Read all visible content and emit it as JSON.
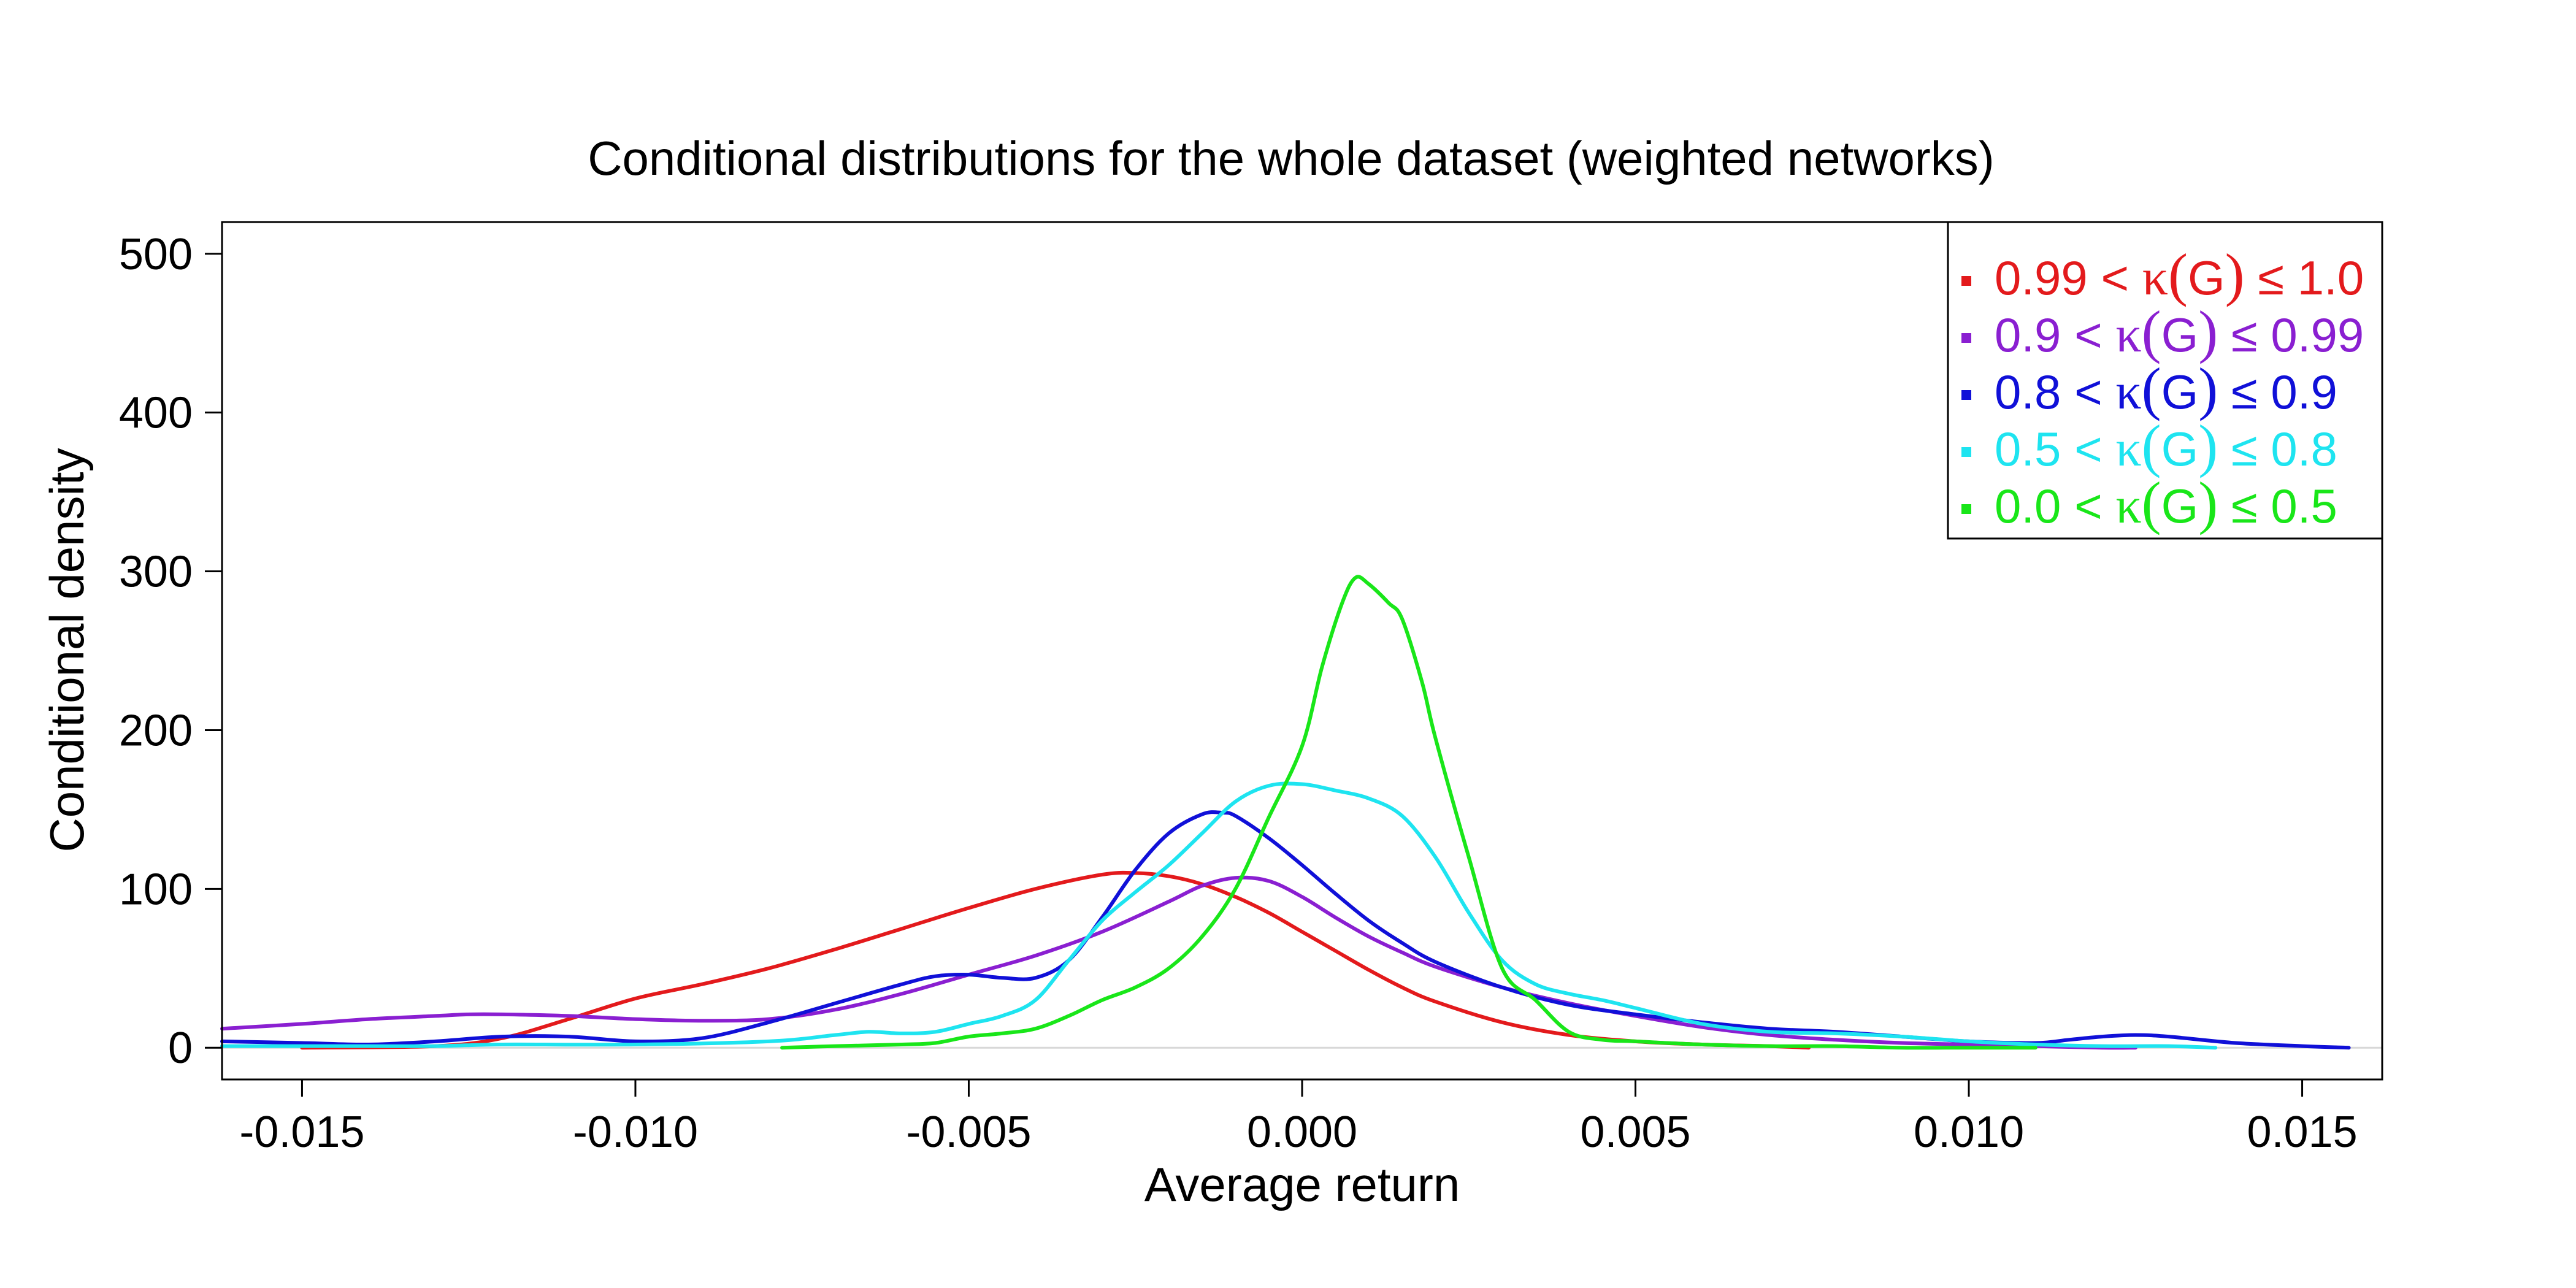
{
  "chart_data": {
    "type": "line",
    "title": "Conditional distributions for the whole dataset (weighted networks)",
    "xlabel": "Average return",
    "ylabel": "Conditional density",
    "xlim": [
      -0.0162,
      0.0162
    ],
    "ylim": [
      -20,
      520
    ],
    "x_ticks": [
      -0.015,
      -0.01,
      -0.005,
      0.0,
      0.005,
      0.01,
      0.015
    ],
    "x_tick_labels": [
      "-0.015",
      "-0.010",
      "-0.005",
      "0.000",
      "0.005",
      "0.010",
      "0.015"
    ],
    "y_ticks": [
      0,
      100,
      200,
      300,
      400,
      500
    ],
    "y_tick_labels": [
      "0",
      "100",
      "200",
      "300",
      "400",
      "500"
    ],
    "zero_line": true,
    "grid": false,
    "legend_position": "top-right",
    "series": [
      {
        "name": "0.99 < κ(G) ≤ 1.0",
        "legend_parts": [
          "0.99 < ",
          "κ",
          "(",
          "G",
          ")",
          " ≤ 1.0"
        ],
        "color": "#e31a1c",
        "x": [
          -0.015,
          -0.013,
          -0.012,
          -0.011,
          -0.01,
          -0.009,
          -0.008,
          -0.007,
          -0.006,
          -0.005,
          -0.004,
          -0.003,
          -0.0025,
          -0.002,
          -0.0015,
          -0.001,
          -0.0005,
          0.0,
          0.0005,
          0.001,
          0.0015,
          0.002,
          0.003,
          0.004,
          0.005,
          0.006,
          0.007,
          0.0076
        ],
        "y": [
          0,
          1,
          6,
          18,
          31,
          40,
          50,
          62,
          75,
          88,
          100,
          109,
          110,
          108,
          103,
          95,
          85,
          73,
          61,
          49,
          38,
          29,
          16,
          8,
          4,
          2,
          1,
          0
        ]
      },
      {
        "name": "0.9 < κ(G) ≤ 0.99",
        "legend_parts": [
          "0.9 < ",
          "κ",
          "(",
          "G",
          ")",
          " ≤ 0.99"
        ],
        "color": "#8a1fd1",
        "x": [
          -0.0162,
          -0.015,
          -0.014,
          -0.013,
          -0.0125,
          -0.012,
          -0.011,
          -0.01,
          -0.009,
          -0.008,
          -0.007,
          -0.006,
          -0.005,
          -0.004,
          -0.003,
          -0.002,
          -0.0015,
          -0.001,
          -0.0005,
          0.0,
          0.0005,
          0.001,
          0.0015,
          0.002,
          0.003,
          0.004,
          0.005,
          0.006,
          0.007,
          0.008,
          0.009,
          0.01,
          0.011,
          0.012,
          0.0125
        ],
        "y": [
          12,
          15,
          18,
          20,
          21,
          21,
          20,
          18,
          17,
          18,
          24,
          34,
          46,
          58,
          73,
          92,
          102,
          107,
          105,
          95,
          82,
          70,
          60,
          51,
          38,
          28,
          20,
          13,
          8,
          5,
          3,
          2,
          1,
          0,
          0
        ]
      },
      {
        "name": "0.8 < κ(G) ≤ 0.9",
        "legend_parts": [
          "0.8 < ",
          "κ",
          "(",
          "G",
          ")",
          " ≤ 0.9"
        ],
        "color": "#1010d8",
        "x": [
          -0.0162,
          -0.015,
          -0.014,
          -0.013,
          -0.012,
          -0.011,
          -0.01,
          -0.009,
          -0.008,
          -0.007,
          -0.006,
          -0.0055,
          -0.005,
          -0.0045,
          -0.004,
          -0.0035,
          -0.003,
          -0.0025,
          -0.002,
          -0.0015,
          -0.0012,
          -0.001,
          -0.0005,
          0.0,
          0.0005,
          0.001,
          0.0015,
          0.002,
          0.003,
          0.004,
          0.005,
          0.006,
          0.007,
          0.008,
          0.009,
          0.01,
          0.011,
          0.0115,
          0.012,
          0.0125,
          0.013,
          0.014,
          0.015,
          0.0157
        ],
        "y": [
          4,
          3,
          2,
          4,
          7,
          7,
          4,
          6,
          16,
          28,
          40,
          45,
          46,
          44,
          44,
          55,
          82,
          112,
          135,
          147,
          148,
          146,
          132,
          115,
          97,
          80,
          66,
          54,
          38,
          27,
          21,
          16,
          12,
          10,
          7,
          4,
          3,
          5,
          7,
          8,
          7,
          3,
          1,
          0
        ]
      },
      {
        "name": "0.5 < κ(G) ≤ 0.8",
        "legend_parts": [
          "0.5 < ",
          "κ",
          "(",
          "G",
          ")",
          " ≤ 0.8"
        ],
        "color": "#1ee4f0",
        "x": [
          -0.0162,
          -0.015,
          -0.014,
          -0.013,
          -0.012,
          -0.01,
          -0.008,
          -0.007,
          -0.0065,
          -0.006,
          -0.0055,
          -0.005,
          -0.0045,
          -0.004,
          -0.0035,
          -0.003,
          -0.0025,
          -0.002,
          -0.0015,
          -0.001,
          -0.0005,
          0.0,
          0.0005,
          0.001,
          0.0015,
          0.002,
          0.0025,
          0.003,
          0.0035,
          0.004,
          0.0045,
          0.005,
          0.006,
          0.007,
          0.008,
          0.009,
          0.01,
          0.011,
          0.012,
          0.013,
          0.0137
        ],
        "y": [
          1,
          1,
          1,
          1,
          2,
          2,
          4,
          8,
          10,
          9,
          10,
          15,
          20,
          30,
          55,
          80,
          98,
          115,
          135,
          155,
          165,
          166,
          162,
          157,
          146,
          120,
          85,
          55,
          40,
          34,
          30,
          25,
          15,
          10,
          9,
          7,
          4,
          2,
          1,
          1,
          0
        ]
      },
      {
        "name": "0.0 < κ(G) ≤ 0.5",
        "legend_parts": [
          "0.0 < ",
          "κ",
          "(",
          "G",
          ")",
          " ≤ 0.5"
        ],
        "color": "#19e619",
        "x": [
          -0.0078,
          -0.007,
          -0.006,
          -0.0055,
          -0.005,
          -0.0045,
          -0.004,
          -0.0035,
          -0.003,
          -0.0025,
          -0.002,
          -0.0015,
          -0.001,
          -0.0005,
          0.0,
          0.0003,
          0.0006,
          0.0008,
          0.001,
          0.0013,
          0.0015,
          0.0018,
          0.002,
          0.0025,
          0.003,
          0.0035,
          0.004,
          0.0045,
          0.005,
          0.006,
          0.007,
          0.008,
          0.009,
          0.01,
          0.011
        ],
        "y": [
          0,
          1,
          2,
          3,
          7,
          9,
          12,
          20,
          30,
          38,
          50,
          70,
          100,
          145,
          190,
          240,
          280,
          296,
          292,
          280,
          270,
          230,
          195,
          120,
          50,
          30,
          10,
          5,
          4,
          2,
          1,
          1,
          0,
          0,
          0
        ]
      }
    ]
  }
}
